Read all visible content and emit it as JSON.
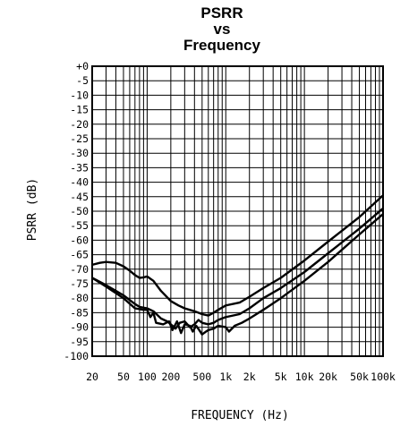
{
  "chart_data": {
    "type": "line",
    "title_lines": [
      "PSRR",
      "vs",
      "Frequency"
    ],
    "xlabel": "FREQUENCY (Hz)",
    "ylabel": "PSRR (dB)",
    "x_scale": "log",
    "xlim": [
      20,
      100000
    ],
    "ylim": [
      -100,
      0
    ],
    "grid": true,
    "x_ticks": [
      {
        "value": 20,
        "label": "20"
      },
      {
        "value": 50,
        "label": "50"
      },
      {
        "value": 100,
        "label": "100"
      },
      {
        "value": 200,
        "label": "200"
      },
      {
        "value": 500,
        "label": "500"
      },
      {
        "value": 1000,
        "label": "1k"
      },
      {
        "value": 2000,
        "label": "2k"
      },
      {
        "value": 5000,
        "label": "5k"
      },
      {
        "value": 10000,
        "label": "10k"
      },
      {
        "value": 20000,
        "label": "20k"
      },
      {
        "value": 50000,
        "label": "50k"
      },
      {
        "value": 100000,
        "label": "100k"
      }
    ],
    "y_ticks": [
      {
        "value": 0,
        "label": "+0"
      },
      {
        "value": -5,
        "label": "-5"
      },
      {
        "value": -10,
        "label": "-10"
      },
      {
        "value": -15,
        "label": "-15"
      },
      {
        "value": -20,
        "label": "-20"
      },
      {
        "value": -25,
        "label": "-25"
      },
      {
        "value": -30,
        "label": "-30"
      },
      {
        "value": -35,
        "label": "-35"
      },
      {
        "value": -40,
        "label": "-40"
      },
      {
        "value": -45,
        "label": "-45"
      },
      {
        "value": -50,
        "label": "-50"
      },
      {
        "value": -55,
        "label": "-55"
      },
      {
        "value": -60,
        "label": "-60"
      },
      {
        "value": -65,
        "label": "-65"
      },
      {
        "value": -70,
        "label": "-70"
      },
      {
        "value": -75,
        "label": "-75"
      },
      {
        "value": -80,
        "label": "-80"
      },
      {
        "value": -85,
        "label": "-85"
      },
      {
        "value": -90,
        "label": "-90"
      },
      {
        "value": -95,
        "label": "-95"
      },
      {
        "value": -100,
        "label": "-100"
      }
    ],
    "series": [
      {
        "color": "#000000",
        "points": [
          [
            20,
            -68.5
          ],
          [
            25,
            -67.8
          ],
          [
            30,
            -67.5
          ],
          [
            40,
            -67.8
          ],
          [
            50,
            -69
          ],
          [
            60,
            -70.5
          ],
          [
            70,
            -72
          ],
          [
            80,
            -73
          ],
          [
            90,
            -72.8
          ],
          [
            100,
            -72.5
          ],
          [
            120,
            -74
          ],
          [
            150,
            -77.5
          ],
          [
            200,
            -81
          ],
          [
            250,
            -82.5
          ],
          [
            300,
            -83.5
          ],
          [
            400,
            -84.5
          ],
          [
            500,
            -85.5
          ],
          [
            600,
            -86
          ],
          [
            700,
            -85
          ],
          [
            800,
            -84
          ],
          [
            1000,
            -82.5
          ],
          [
            1500,
            -81.5
          ],
          [
            2000,
            -79.5
          ],
          [
            3000,
            -76.5
          ],
          [
            5000,
            -73
          ],
          [
            10000,
            -67
          ],
          [
            20000,
            -60.5
          ],
          [
            50000,
            -52
          ],
          [
            100000,
            -44.5
          ]
        ]
      },
      {
        "color": "#000000",
        "points": [
          [
            20,
            -73
          ],
          [
            30,
            -75.5
          ],
          [
            50,
            -79
          ],
          [
            70,
            -82
          ],
          [
            80,
            -83
          ],
          [
            100,
            -83.5
          ],
          [
            120,
            -84.5
          ],
          [
            150,
            -87
          ],
          [
            180,
            -88
          ],
          [
            200,
            -89
          ],
          [
            230,
            -90.5
          ],
          [
            260,
            -88.5
          ],
          [
            300,
            -88
          ],
          [
            350,
            -90
          ],
          [
            400,
            -89
          ],
          [
            450,
            -87.5
          ],
          [
            500,
            -88.5
          ],
          [
            600,
            -89
          ],
          [
            700,
            -88.5
          ],
          [
            800,
            -87.5
          ],
          [
            1000,
            -86.5
          ],
          [
            1500,
            -85.5
          ],
          [
            2000,
            -83.5
          ],
          [
            3000,
            -80
          ],
          [
            5000,
            -76.5
          ],
          [
            10000,
            -71
          ],
          [
            20000,
            -64.5
          ],
          [
            50000,
            -56
          ],
          [
            100000,
            -49
          ]
        ]
      },
      {
        "color": "#000000",
        "points": [
          [
            20,
            -73
          ],
          [
            30,
            -76
          ],
          [
            50,
            -80
          ],
          [
            70,
            -83.5
          ],
          [
            90,
            -84
          ],
          [
            100,
            -84
          ],
          [
            110,
            -86.5
          ],
          [
            120,
            -85
          ],
          [
            130,
            -88.5
          ],
          [
            160,
            -89
          ],
          [
            190,
            -88
          ],
          [
            210,
            -91
          ],
          [
            240,
            -88
          ],
          [
            270,
            -92
          ],
          [
            300,
            -89
          ],
          [
            350,
            -89.5
          ],
          [
            380,
            -91.5
          ],
          [
            420,
            -89.5
          ],
          [
            460,
            -91
          ],
          [
            500,
            -92.5
          ],
          [
            560,
            -91.5
          ],
          [
            600,
            -91
          ],
          [
            700,
            -90.5
          ],
          [
            800,
            -89.5
          ],
          [
            1000,
            -90
          ],
          [
            1100,
            -91.5
          ],
          [
            1300,
            -89.5
          ],
          [
            1600,
            -88.5
          ],
          [
            2000,
            -87
          ],
          [
            3000,
            -84
          ],
          [
            5000,
            -80
          ],
          [
            10000,
            -74
          ],
          [
            20000,
            -67.5
          ],
          [
            50000,
            -58
          ],
          [
            100000,
            -51
          ]
        ]
      }
    ]
  }
}
